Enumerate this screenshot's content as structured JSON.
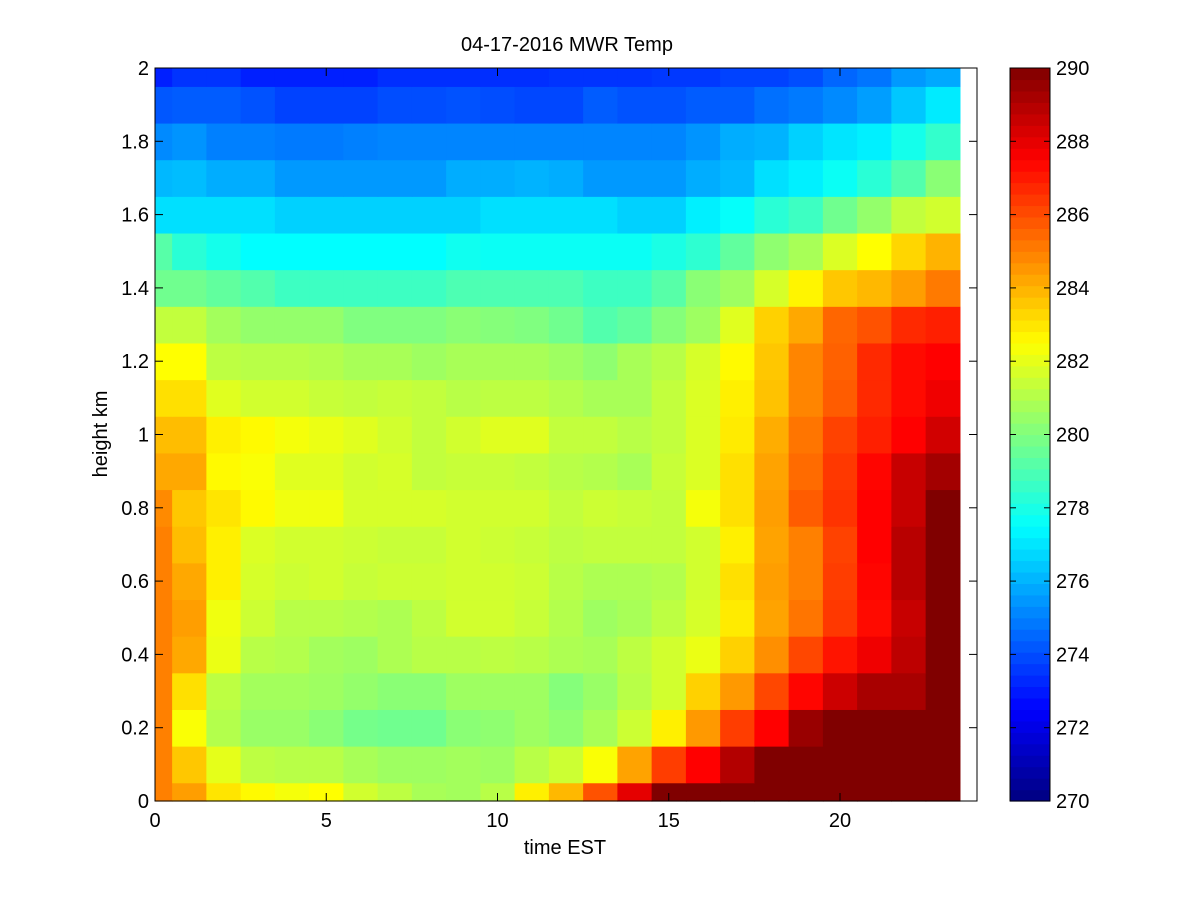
{
  "chart_data": {
    "type": "heatmap",
    "title": "04-17-2016 MWR Temp",
    "xlabel": "time EST",
    "ylabel": "height km",
    "xlim": [
      0,
      24
    ],
    "ylim": [
      0,
      2
    ],
    "x_ticks": [
      "0",
      "5",
      "10",
      "15",
      "20"
    ],
    "x_tick_values": [
      0,
      5,
      10,
      15,
      20
    ],
    "y_ticks": [
      "0",
      "0.2",
      "0.4",
      "0.6",
      "0.8",
      "1",
      "1.2",
      "1.4",
      "1.6",
      "1.8",
      "2"
    ],
    "y_tick_values": [
      0,
      0.2,
      0.4,
      0.6,
      0.8,
      1.0,
      1.2,
      1.4,
      1.6,
      1.8,
      2.0
    ],
    "x": [
      0,
      1,
      2,
      3,
      4,
      5,
      6,
      7,
      8,
      9,
      10,
      11,
      12,
      13,
      14,
      15,
      16,
      17,
      18,
      19,
      20,
      21,
      22,
      23
    ],
    "y": [
      0,
      0.1,
      0.2,
      0.3,
      0.4,
      0.5,
      0.6,
      0.7,
      0.8,
      0.9,
      1.0,
      1.1,
      1.2,
      1.3,
      1.4,
      1.5,
      1.6,
      1.7,
      1.8,
      1.9,
      2.0
    ],
    "colormap": "jet",
    "colorbar": {
      "clim": [
        270,
        290
      ],
      "ticks": [
        "270",
        "272",
        "274",
        "276",
        "278",
        "280",
        "282",
        "284",
        "286",
        "288",
        "290"
      ],
      "tick_values": [
        270,
        272,
        274,
        276,
        278,
        280,
        282,
        284,
        286,
        288,
        290
      ],
      "placement": "right"
    },
    "z": [
      [
        285.0,
        284.4,
        283.0,
        282.6,
        282.3,
        282.5,
        281.6,
        281.2,
        280.8,
        280.7,
        281.1,
        282.8,
        283.9,
        285.9,
        288.0,
        290.0,
        290.0,
        290.0,
        290.0,
        290.0,
        290.0,
        290.0,
        290.0,
        290.0
      ],
      [
        285.0,
        283.6,
        282.0,
        281.2,
        281.1,
        281.1,
        280.8,
        280.6,
        280.6,
        280.7,
        280.6,
        281.1,
        281.5,
        282.4,
        284.3,
        286.3,
        287.5,
        289.0,
        290.0,
        290.0,
        290.0,
        290.0,
        290.0,
        290.0
      ],
      [
        285.0,
        282.4,
        281.0,
        280.5,
        280.5,
        280.2,
        279.8,
        279.7,
        279.7,
        280.2,
        280.3,
        280.6,
        280.3,
        280.8,
        281.5,
        282.8,
        284.5,
        286.3,
        287.5,
        289.5,
        290.0,
        290.0,
        290.0,
        290.0
      ],
      [
        285.0,
        283.1,
        281.2,
        280.7,
        280.7,
        280.6,
        280.4,
        280.2,
        280.2,
        280.6,
        280.6,
        280.6,
        280.1,
        280.5,
        281.1,
        281.6,
        283.4,
        284.5,
        286.1,
        287.4,
        288.5,
        289.2,
        289.2,
        290.0
      ],
      [
        285.0,
        284.2,
        282.1,
        281.1,
        281.0,
        280.7,
        280.6,
        280.9,
        281.1,
        281.1,
        281.2,
        281.1,
        280.9,
        280.8,
        281.2,
        281.6,
        282.1,
        283.4,
        284.7,
        286.1,
        287.1,
        287.8,
        288.8,
        290.0
      ],
      [
        285.0,
        284.4,
        282.2,
        281.5,
        281.1,
        281.1,
        281.0,
        280.9,
        281.2,
        281.6,
        281.6,
        281.4,
        281.0,
        280.6,
        280.8,
        281.2,
        281.7,
        282.9,
        284.3,
        285.2,
        286.4,
        287.3,
        288.6,
        290.0
      ],
      [
        285.0,
        284.2,
        282.8,
        281.7,
        281.5,
        281.6,
        281.4,
        281.5,
        281.5,
        281.6,
        281.6,
        281.5,
        281.1,
        280.9,
        280.9,
        281.0,
        281.6,
        283.1,
        284.4,
        285.0,
        286.3,
        287.4,
        288.9,
        290.0
      ],
      [
        285.0,
        283.8,
        282.8,
        281.8,
        281.6,
        281.6,
        281.5,
        281.4,
        281.4,
        281.6,
        281.5,
        281.4,
        281.2,
        281.3,
        281.3,
        281.3,
        281.6,
        282.8,
        284.3,
        285.0,
        286.2,
        287.5,
        288.9,
        290.0
      ],
      [
        284.8,
        283.6,
        283.0,
        282.6,
        282.2,
        282.2,
        281.7,
        281.7,
        281.7,
        281.6,
        281.6,
        281.6,
        281.3,
        281.5,
        281.4,
        281.3,
        282.3,
        283.1,
        284.4,
        285.7,
        286.5,
        287.5,
        288.6,
        290.0
      ],
      [
        284.2,
        284.2,
        282.6,
        282.4,
        281.9,
        281.9,
        281.6,
        281.7,
        281.3,
        281.4,
        281.4,
        281.3,
        281.1,
        281.0,
        280.8,
        281.4,
        281.8,
        283.1,
        284.3,
        285.4,
        286.4,
        287.4,
        288.6,
        289.3
      ],
      [
        283.8,
        283.8,
        282.8,
        282.6,
        282.3,
        282.1,
        281.9,
        281.6,
        281.3,
        281.6,
        281.9,
        281.9,
        281.3,
        281.3,
        281.1,
        281.3,
        281.8,
        282.9,
        284.1,
        285.2,
        286.2,
        286.9,
        287.5,
        288.4
      ],
      [
        283.1,
        283.1,
        281.9,
        281.6,
        281.6,
        281.4,
        281.3,
        281.4,
        281.3,
        281.1,
        281.2,
        281.2,
        281.0,
        280.8,
        280.8,
        281.3,
        281.8,
        282.8,
        283.7,
        284.9,
        285.7,
        286.7,
        287.3,
        287.8
      ],
      [
        282.5,
        282.5,
        281.2,
        281.1,
        281.1,
        281.0,
        280.8,
        280.8,
        280.6,
        280.8,
        280.8,
        280.8,
        280.6,
        280.3,
        280.8,
        281.1,
        281.7,
        282.6,
        283.6,
        284.9,
        285.6,
        286.7,
        287.3,
        287.5
      ],
      [
        281.3,
        281.3,
        280.7,
        280.4,
        280.4,
        280.4,
        280.0,
        280.0,
        280.0,
        280.2,
        280.1,
        280.0,
        279.7,
        279.1,
        279.4,
        280.1,
        280.6,
        281.9,
        283.4,
        284.2,
        285.5,
        285.9,
        286.7,
        286.9
      ],
      [
        279.7,
        279.7,
        279.4,
        279.1,
        278.7,
        278.7,
        278.7,
        278.7,
        278.7,
        279.0,
        279.0,
        279.0,
        279.0,
        278.7,
        278.7,
        279.2,
        280.2,
        280.6,
        281.7,
        282.7,
        283.6,
        283.9,
        284.4,
        285.1
      ],
      [
        279.2,
        278.3,
        277.9,
        277.5,
        277.5,
        277.5,
        277.5,
        277.5,
        277.5,
        277.8,
        277.7,
        277.7,
        277.7,
        277.7,
        277.7,
        278.0,
        278.4,
        279.4,
        280.3,
        280.8,
        281.8,
        282.5,
        283.3,
        284.0
      ],
      [
        276.9,
        276.9,
        276.9,
        276.9,
        276.6,
        276.6,
        276.6,
        276.6,
        276.6,
        276.6,
        276.9,
        276.9,
        276.9,
        276.9,
        276.6,
        276.6,
        277.2,
        277.6,
        278.3,
        278.7,
        279.7,
        280.4,
        281.3,
        281.6
      ],
      [
        276.1,
        276.2,
        275.9,
        275.9,
        275.5,
        275.5,
        275.5,
        275.5,
        275.5,
        275.9,
        275.9,
        276.0,
        275.9,
        275.5,
        275.5,
        275.5,
        275.9,
        276.1,
        276.9,
        277.2,
        277.7,
        278.3,
        279.1,
        280.2
      ],
      [
        275.2,
        275.4,
        275.0,
        275.0,
        274.9,
        274.9,
        275.0,
        275.1,
        275.1,
        275.1,
        275.1,
        275.1,
        275.1,
        275.1,
        275.1,
        275.1,
        275.4,
        275.9,
        276.0,
        276.6,
        277.0,
        277.2,
        277.9,
        278.5
      ],
      [
        274.2,
        274.3,
        274.3,
        274.1,
        273.8,
        273.8,
        273.8,
        274.0,
        274.0,
        274.1,
        274.0,
        273.9,
        273.9,
        274.3,
        274.1,
        274.1,
        274.3,
        274.3,
        274.7,
        274.9,
        275.2,
        275.6,
        276.4,
        277.1
      ],
      [
        273.1,
        273.5,
        273.5,
        273.1,
        273.1,
        273.1,
        273.1,
        273.4,
        273.4,
        273.4,
        273.4,
        273.4,
        273.5,
        273.5,
        273.5,
        273.6,
        273.6,
        273.8,
        273.8,
        274.0,
        274.5,
        274.8,
        275.5,
        275.8
      ]
    ]
  }
}
